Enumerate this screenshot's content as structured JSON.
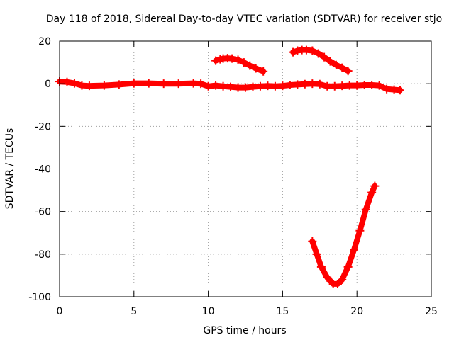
{
  "chart_data": {
    "type": "line",
    "title": "Day 118 of 2018, Sidereal Day-to-day VTEC variation (SDTVAR) for receiver stjo",
    "xlabel": "GPS time / hours",
    "ylabel": "SDTVAR / TECUs",
    "xlim": [
      0,
      25
    ],
    "ylim": [
      -100,
      20
    ],
    "x_ticks": [
      0,
      5,
      10,
      15,
      20,
      25
    ],
    "x_tick_labels": [
      "0",
      "5",
      "10",
      "15",
      "20",
      "25"
    ],
    "y_ticks": [
      -100,
      -80,
      -60,
      -40,
      -20,
      0,
      20
    ],
    "y_tick_labels": [
      "-100",
      "-80",
      "-60",
      "-40",
      "-20",
      "0",
      "20"
    ],
    "grid": true,
    "legend": "none",
    "marker": "plus",
    "color": "#ff0000",
    "series": [
      {
        "color": "#ff0000",
        "x": [
          0.0,
          0.5,
          1.0,
          1.5,
          2.0,
          3.0,
          4.0,
          5.0,
          6.0,
          7.0,
          8.0,
          9.0,
          9.5,
          10.0,
          10.5,
          11.0,
          11.5,
          12.0,
          12.5,
          13.0,
          13.5,
          14.0,
          14.5,
          15.0,
          15.5,
          16.0,
          16.5,
          17.0,
          17.5,
          18.0,
          18.5,
          19.0,
          19.5,
          20.0,
          20.5,
          21.0,
          21.5,
          22.0,
          22.5,
          22.9
        ],
        "y": [
          1.0,
          0.8,
          0.2,
          -0.8,
          -1.0,
          -0.8,
          -0.4,
          0.2,
          0.2,
          0.0,
          0.0,
          0.2,
          0.0,
          -1.2,
          -0.8,
          -1.2,
          -1.5,
          -1.8,
          -1.8,
          -1.5,
          -1.2,
          -1.0,
          -1.2,
          -1.0,
          -0.6,
          -0.4,
          -0.2,
          0.0,
          -0.2,
          -1.2,
          -1.2,
          -1.0,
          -0.8,
          -0.8,
          -0.6,
          -0.6,
          -0.8,
          -2.5,
          -2.8,
          -3.0
        ]
      },
      {
        "color": "#ff0000",
        "x": [
          10.5,
          10.8,
          11.0,
          11.3,
          11.6,
          12.0,
          12.4,
          12.8,
          13.2,
          13.7
        ],
        "y": [
          10.8,
          11.5,
          11.8,
          12.0,
          11.8,
          11.2,
          10.0,
          8.5,
          7.2,
          5.8
        ]
      },
      {
        "color": "#ff0000",
        "x": [
          15.7,
          16.0,
          16.3,
          16.6,
          17.0,
          17.4,
          17.8,
          18.2,
          18.6,
          19.0,
          19.4
        ],
        "y": [
          14.8,
          15.5,
          15.8,
          15.8,
          15.5,
          14.2,
          12.5,
          10.5,
          8.8,
          7.5,
          6.0
        ]
      },
      {
        "color": "#ff0000",
        "x": [
          17.0,
          17.3,
          17.6,
          18.0,
          18.4,
          18.7,
          19.0,
          19.4,
          19.8,
          20.2,
          20.6,
          21.0,
          21.2
        ],
        "y": [
          -74,
          -80,
          -86,
          -91,
          -94,
          -94,
          -92,
          -86,
          -78,
          -69,
          -59,
          -51,
          -48
        ]
      }
    ]
  }
}
